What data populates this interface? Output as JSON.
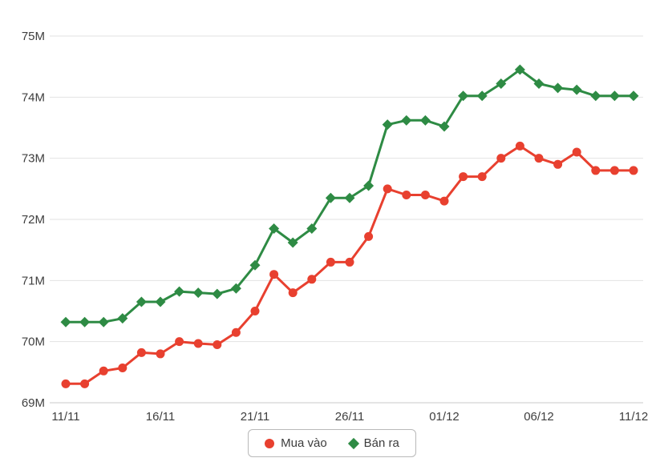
{
  "chart_data": {
    "type": "line",
    "x": [
      "11/11",
      "12/11",
      "13/11",
      "14/11",
      "15/11",
      "16/11",
      "17/11",
      "18/11",
      "19/11",
      "20/11",
      "21/11",
      "22/11",
      "23/11",
      "24/11",
      "25/11",
      "26/11",
      "27/11",
      "28/11",
      "29/11",
      "30/11",
      "01/12",
      "02/12",
      "03/12",
      "04/12",
      "05/12",
      "06/12",
      "07/12",
      "08/12",
      "09/12",
      "10/12",
      "11/12"
    ],
    "x_tick_indices": [
      0,
      5,
      10,
      15,
      20,
      25,
      30
    ],
    "x_tick_labels": [
      "11/11",
      "16/11",
      "21/11",
      "26/11",
      "01/12",
      "06/12",
      "11/12"
    ],
    "y_tick_labels": [
      "69M",
      "70M",
      "71M",
      "72M",
      "73M",
      "74M",
      "75M"
    ],
    "ylim": [
      69,
      75
    ],
    "unit": "M",
    "grid": true,
    "legend_position": "bottom",
    "title": "",
    "xlabel": "",
    "ylabel": "",
    "series": [
      {
        "name": "Mua vào",
        "color": "#e8402f",
        "marker": "circle",
        "values": [
          69.31,
          69.31,
          69.52,
          69.57,
          69.82,
          69.8,
          70.0,
          69.97,
          69.95,
          70.15,
          70.5,
          71.1,
          70.8,
          71.02,
          71.3,
          71.3,
          71.72,
          72.5,
          72.4,
          72.4,
          72.3,
          72.7,
          72.7,
          73.0,
          73.2,
          73.0,
          72.9,
          73.1,
          72.8,
          72.8,
          72.8
        ]
      },
      {
        "name": "Bán ra",
        "color": "#2e8b44",
        "marker": "diamond",
        "values": [
          70.32,
          70.32,
          70.32,
          70.38,
          70.65,
          70.65,
          70.82,
          70.8,
          70.78,
          70.87,
          71.25,
          71.85,
          71.62,
          71.85,
          72.35,
          72.35,
          72.55,
          73.55,
          73.62,
          73.62,
          73.52,
          74.02,
          74.02,
          74.22,
          74.45,
          74.22,
          74.15,
          74.12,
          74.02,
          74.02,
          74.02
        ]
      }
    ],
    "colors": {
      "grid_line": "#e2e2e2",
      "axis_line": "#c9c9c9",
      "tick_text": "#3f3f3f"
    }
  }
}
